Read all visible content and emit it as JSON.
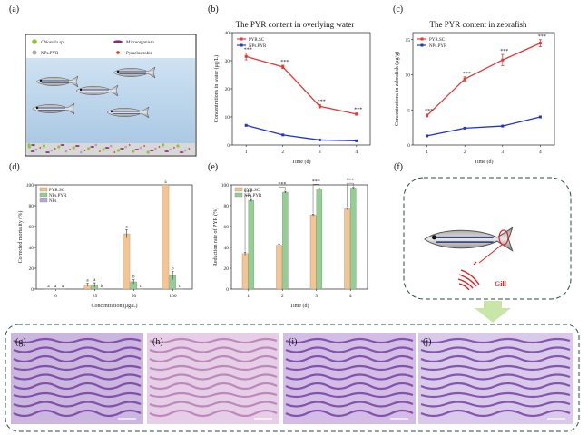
{
  "panel_labels": [
    "(a)",
    "(b)",
    "(c)",
    "(d)",
    "(e)",
    "(f)",
    "(g)",
    "(h)",
    "(i)",
    "(j)"
  ],
  "panel_a": {
    "legend": {
      "chlorella": "Chlorella sp.",
      "microorganism": "Microorganism",
      "nps_pyr": "NPs.PYR",
      "pyraclostrobin": "Pyraclostrobin"
    },
    "colors": {
      "chlorella": "#8cc63f",
      "microorganism": "#8b2a74",
      "nps": "#a9a9a9",
      "pyr": "#e03020",
      "water": "#b9d4ea",
      "bottom": "#d8d8d8"
    }
  },
  "panel_f": {
    "gill_label": "Gill",
    "gill_color": "#e02020",
    "arrow_color": "#c8e6a8"
  },
  "chart_data": [
    {
      "id": "b",
      "type": "line",
      "title": "The PYR content in overlying water",
      "xlabel": "Time (d)",
      "ylabel": "Concentrations in water (μg/L)",
      "x": [
        1,
        2,
        3,
        4
      ],
      "xticks": [
        "1",
        "2",
        "3",
        "4"
      ],
      "ylim": [
        0,
        40
      ],
      "yticks": [
        "0",
        "10",
        "20",
        "30",
        "40"
      ],
      "series": [
        {
          "name": "PYR.SC",
          "color": "#e53935",
          "values": [
            31.5,
            27.8,
            13.8,
            11.0
          ],
          "errors": [
            1.2,
            0.6,
            0.6,
            0.4
          ]
        },
        {
          "name": "NPs.PYR",
          "color": "#2233cc",
          "values": [
            7.0,
            3.6,
            1.8,
            1.5
          ],
          "errors": [
            0,
            0,
            0,
            0
          ]
        }
      ],
      "annotations": [
        "***",
        "***",
        "***",
        "***"
      ],
      "legend_position": "top-left"
    },
    {
      "id": "c",
      "type": "line",
      "title": "The PYR content in zebrafish",
      "xlabel": "Time (d)",
      "ylabel": "Concentrations in zebrafish (μg/g)",
      "x": [
        1,
        2,
        3,
        4
      ],
      "xticks": [
        "1",
        "2",
        "3",
        "4"
      ],
      "ylim": [
        0,
        16
      ],
      "yticks": [
        "0",
        "5",
        "10",
        "15"
      ],
      "series": [
        {
          "name": "PYR.SC",
          "color": "#e53935",
          "values": [
            4.2,
            9.4,
            12.1,
            14.5
          ],
          "errors": [
            0.2,
            0.3,
            0.8,
            0.5
          ]
        },
        {
          "name": "NPs.PYR",
          "color": "#2233cc",
          "values": [
            1.3,
            2.4,
            2.7,
            4.0
          ],
          "errors": [
            0,
            0,
            0,
            0
          ]
        }
      ],
      "annotations": [
        "***",
        "***",
        "***",
        "***"
      ],
      "legend_position": "top-left"
    },
    {
      "id": "d",
      "type": "bar",
      "xlabel": "Concentration (μg/L)",
      "ylabel": "Corrected mortality (%)",
      "categories": [
        "0",
        "25",
        "50",
        "100"
      ],
      "ylim": [
        0,
        100
      ],
      "yticks": [
        "0",
        "20",
        "40",
        "60",
        "80",
        "100"
      ],
      "series": [
        {
          "name": "PYR.SC",
          "color": "#f6c58f",
          "values": [
            0,
            4,
            53,
            100
          ],
          "errors": [
            0,
            1.5,
            4,
            0
          ]
        },
        {
          "name": "NPs.PYR",
          "color": "#93cf93",
          "values": [
            0,
            4,
            7,
            13
          ],
          "errors": [
            0,
            2,
            2,
            4
          ]
        },
        {
          "name": "NPs",
          "color": "#b7a6d9",
          "values": [
            0,
            0,
            0,
            0
          ],
          "errors": [
            0,
            0,
            0,
            0
          ]
        }
      ],
      "letters": [
        [
          "a",
          "a",
          "a"
        ],
        [
          "a",
          "a",
          "b"
        ],
        [
          "a",
          "b",
          "c"
        ],
        [
          "a",
          "b",
          "c"
        ]
      ],
      "legend_position": "top-left"
    },
    {
      "id": "e",
      "type": "bar",
      "xlabel": "Time (d)",
      "ylabel": "Reduction rate of PYR (%)",
      "categories": [
        "1",
        "2",
        "3",
        "4"
      ],
      "ylim": [
        0,
        100
      ],
      "yticks": [
        "0",
        "20",
        "40",
        "60",
        "80",
        "100"
      ],
      "series": [
        {
          "name": "PYR.SC",
          "color": "#f6c58f",
          "values": [
            34,
            42,
            71,
            77
          ],
          "errors": [
            1.5,
            1,
            0.8,
            0.8
          ]
        },
        {
          "name": "NPs.PYR",
          "color": "#93cf93",
          "values": [
            85,
            93,
            96,
            97
          ],
          "errors": [
            1,
            0.8,
            0.6,
            0.6
          ]
        }
      ],
      "annotations": [
        "***",
        "***",
        "***",
        "***"
      ],
      "legend_position": "top-left"
    }
  ]
}
